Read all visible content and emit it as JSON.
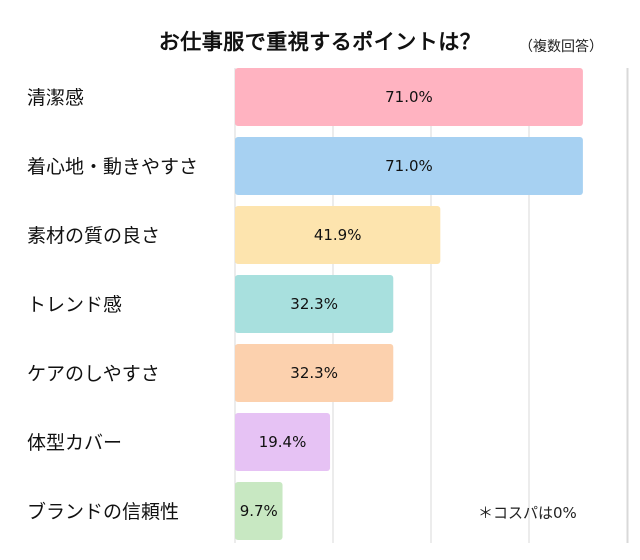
{
  "title": "お仕事服で重視するポイントは？",
  "note": "（複数回答）",
  "footnote": "＊コスパは0%",
  "chart_data": {
    "type": "bar",
    "orientation": "horizontal",
    "title": "お仕事服で重視するポイントは？",
    "xlim": [
      0,
      100
    ],
    "grid": true,
    "categories": [
      "清潔感",
      "着心地・動きやすさ",
      "素材の質の良さ",
      "トレンド感",
      "ケアのしやすさ",
      "体型カバー",
      "ブランドの信頼性"
    ],
    "values": [
      71.0,
      71.0,
      41.9,
      32.3,
      32.3,
      19.4,
      9.7
    ],
    "value_labels": [
      "71.0%",
      "71.0%",
      "41.9%",
      "32.3%",
      "32.3%",
      "19.4%",
      "9.7%"
    ],
    "colors": [
      "#FFB3C1",
      "#A7D1F2",
      "#FDE4AE",
      "#A8E0DE",
      "#FCD1AE",
      "#E6C2F4",
      "#C8E8C2"
    ]
  }
}
